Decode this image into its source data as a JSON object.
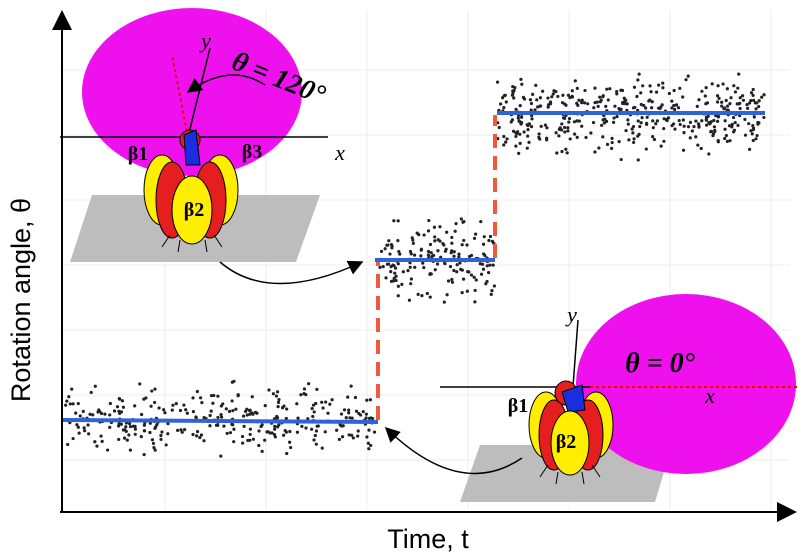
{
  "axes": {
    "y_label": "Rotation angle, θ",
    "x_label": "Time, t"
  },
  "motors": [
    {
      "angle_label": "θ = 120°",
      "x_axis": "x",
      "y_axis": "y",
      "subunits": [
        "β1",
        "β2",
        "β3"
      ]
    },
    {
      "angle_label": "θ = 0°",
      "x_axis": "x",
      "y_axis": "y",
      "subunits": [
        "β1",
        "β2"
      ]
    }
  ]
}
